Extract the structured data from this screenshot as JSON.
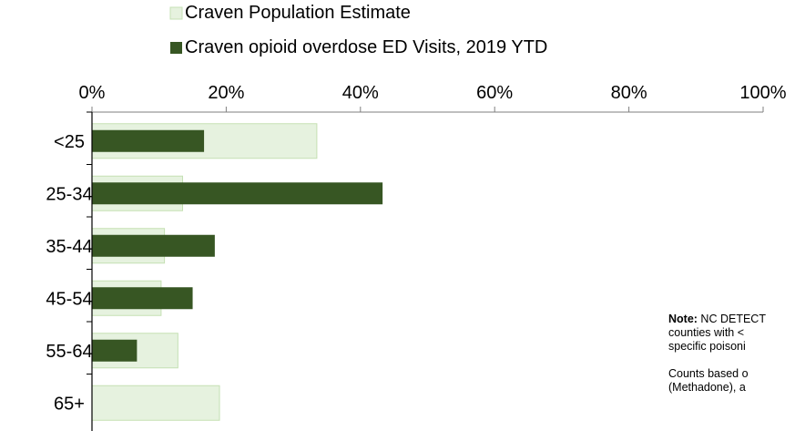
{
  "chart_data": {
    "type": "bar",
    "orientation": "horizontal",
    "categories": [
      "<25",
      "25-34",
      "35-44",
      "45-54",
      "55-64",
      "65+"
    ],
    "series": [
      {
        "name": "Craven Population Estimate",
        "values": [
          33.5,
          13.5,
          10.8,
          10.3,
          12.8,
          19.0
        ],
        "color": "#e6f2df",
        "border": "#c5e0b4"
      },
      {
        "name": "Craven opioid overdose ED Visits, 2019 YTD",
        "values": [
          16.7,
          43.3,
          18.3,
          15.0,
          6.7,
          0
        ],
        "color": "#375623"
      }
    ],
    "x_ticks": [
      "0%",
      "20%",
      "40%",
      "60%",
      "80%",
      "100%"
    ],
    "xlim": [
      0,
      100
    ],
    "axis_position": "top",
    "legend_position": "top",
    "grid": false
  },
  "note": {
    "bold_label": "Note:",
    "line1": " NC DETECT",
    "line2": "counties with <",
    "line3": "specific poisoni",
    "line4": "Counts based o",
    "line5": "(Methadone), a"
  }
}
